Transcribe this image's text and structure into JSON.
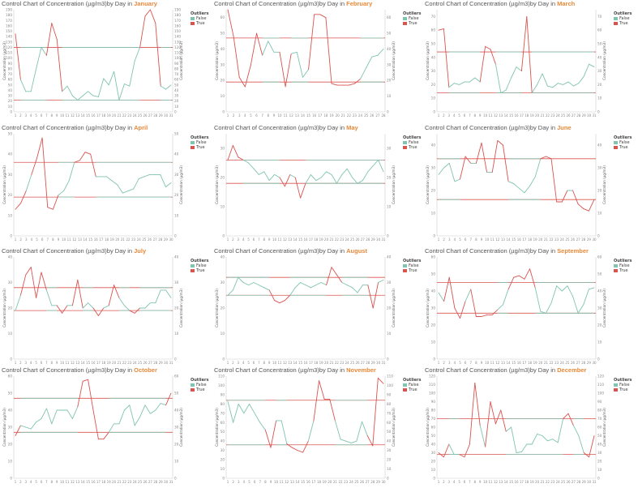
{
  "colors": {
    "normal": "#7fc4b0",
    "outlier": "#d9534f",
    "limit_normal": "#7fc4b0",
    "limit_outlier": "#d9534f",
    "month_text": "#e8893a"
  },
  "title_prefix": "Control Chart of Concentration (µg/m3)by Day in",
  "y_axis_label": "Concentration (µg/m3)",
  "legend": {
    "title": "Outliers",
    "items": [
      "False",
      "True"
    ]
  },
  "chart_data": [
    {
      "type": "line",
      "month": "January",
      "ylim": [
        0,
        190
      ],
      "yticks": [
        0,
        10,
        20,
        30,
        40,
        50,
        60,
        70,
        80,
        90,
        100,
        110,
        120,
        130,
        140,
        150,
        160,
        170,
        180,
        190
      ],
      "x": [
        1,
        2,
        3,
        4,
        5,
        6,
        7,
        8,
        9,
        10,
        11,
        12,
        13,
        14,
        15,
        16,
        17,
        18,
        19,
        20,
        21,
        22,
        23,
        24,
        25,
        26,
        27,
        28,
        29,
        30,
        31
      ],
      "values": [
        145,
        60,
        38,
        38,
        80,
        120,
        105,
        165,
        135,
        38,
        48,
        30,
        22,
        30,
        38,
        30,
        28,
        62,
        50,
        75,
        22,
        52,
        48,
        95,
        120,
        178,
        190,
        165,
        48,
        42,
        50
      ],
      "ucl": 120,
      "lcl": 22,
      "legend_position": "right"
    },
    {
      "type": "line",
      "month": "February",
      "ylim": [
        0,
        65
      ],
      "yticks": [
        0,
        10,
        20,
        30,
        40,
        50,
        60
      ],
      "x": [
        1,
        2,
        3,
        4,
        5,
        6,
        7,
        8,
        9,
        10,
        11,
        12,
        13,
        14,
        15,
        16,
        17,
        18,
        19,
        20,
        21,
        22,
        23,
        24,
        25,
        26,
        27,
        28
      ],
      "values": [
        65,
        48,
        22,
        16,
        30,
        50,
        36,
        45,
        38,
        38,
        16,
        37,
        38,
        22,
        27,
        62,
        62,
        60,
        18,
        17,
        17,
        17,
        18,
        21,
        28,
        35,
        36,
        40
      ],
      "ucl": 47,
      "lcl": 19,
      "legend_position": "right"
    },
    {
      "type": "line",
      "month": "March",
      "ylim": [
        0,
        75
      ],
      "yticks": [
        0,
        10,
        20,
        30,
        40,
        50,
        60,
        70
      ],
      "x": [
        1,
        2,
        3,
        4,
        5,
        6,
        7,
        8,
        9,
        10,
        11,
        12,
        13,
        14,
        15,
        16,
        17,
        18,
        19,
        20,
        21,
        22,
        23,
        24,
        25,
        26,
        27,
        28,
        29,
        30,
        31
      ],
      "values": [
        60,
        61,
        18,
        21,
        20,
        22,
        22,
        25,
        22,
        48,
        46,
        35,
        14,
        16,
        25,
        33,
        30,
        70,
        14,
        20,
        28,
        19,
        18,
        21,
        20,
        22,
        19,
        21,
        26,
        35,
        33
      ],
      "ucl": 44,
      "lcl": 14,
      "legend_position": "right"
    },
    {
      "type": "line",
      "month": "April",
      "ylim": [
        0,
        50
      ],
      "yticks": [
        0,
        10,
        20,
        30,
        40,
        50
      ],
      "x": [
        1,
        2,
        3,
        4,
        5,
        6,
        7,
        8,
        9,
        10,
        11,
        12,
        13,
        14,
        15,
        16,
        17,
        18,
        19,
        20,
        21,
        22,
        23,
        24,
        25,
        26,
        27,
        28,
        29,
        30
      ],
      "values": [
        13,
        16,
        22,
        30,
        38,
        48,
        14,
        13,
        20,
        22,
        27,
        36,
        37,
        41,
        40,
        29,
        29,
        29,
        27,
        25,
        21,
        22,
        23,
        28,
        29,
        30,
        30,
        30,
        24,
        26
      ],
      "ucl": 36,
      "lcl": 19,
      "legend_position": "right"
    },
    {
      "type": "line",
      "month": "May",
      "ylim": [
        0,
        35
      ],
      "yticks": [
        0,
        10,
        20,
        30
      ],
      "x": [
        1,
        2,
        3,
        4,
        5,
        6,
        7,
        8,
        9,
        10,
        11,
        12,
        13,
        14,
        15,
        16,
        17,
        18,
        19,
        20,
        21,
        22,
        23,
        24,
        25,
        26,
        27,
        28,
        29,
        30,
        31
      ],
      "values": [
        26,
        31,
        27,
        26,
        25,
        23,
        21,
        22,
        19,
        21,
        20,
        17,
        21,
        20,
        13,
        18,
        21,
        19,
        20,
        22,
        21,
        18,
        21,
        23,
        20,
        18,
        19,
        22,
        24,
        26,
        22
      ],
      "ucl": 26,
      "lcl": 18,
      "legend_position": "right"
    },
    {
      "type": "line",
      "month": "June",
      "ylim": [
        0,
        45
      ],
      "yticks": [
        0,
        10,
        20,
        30,
        40
      ],
      "x": [
        1,
        2,
        3,
        4,
        5,
        6,
        7,
        8,
        9,
        10,
        11,
        12,
        13,
        14,
        15,
        16,
        17,
        18,
        19,
        20,
        21,
        22,
        23,
        24,
        25,
        26,
        27,
        28,
        29,
        30
      ],
      "values": [
        27,
        30,
        32,
        24,
        25,
        35,
        32,
        32,
        41,
        28,
        28,
        42,
        40,
        24,
        23,
        21,
        19,
        22,
        26,
        34,
        35,
        34,
        15,
        15,
        20,
        20,
        14,
        12,
        11,
        16
      ],
      "ucl": 34,
      "lcl": 16,
      "legend_position": "right"
    },
    {
      "type": "line",
      "month": "July",
      "ylim": [
        0,
        40
      ],
      "yticks": [
        0,
        10,
        20,
        30,
        40
      ],
      "x": [
        1,
        2,
        3,
        4,
        5,
        6,
        7,
        8,
        9,
        10,
        11,
        12,
        13,
        14,
        15,
        16,
        17,
        18,
        19,
        20,
        21,
        22,
        23,
        24,
        25,
        26,
        27,
        28,
        29,
        30,
        31
      ],
      "values": [
        19,
        25,
        33,
        36,
        24,
        34,
        27,
        21,
        21,
        18,
        21,
        21,
        31,
        20,
        22,
        20,
        17,
        20,
        21,
        29,
        24,
        21,
        19,
        18,
        20,
        20,
        22,
        22,
        27,
        27,
        24
      ],
      "ucl": 28,
      "lcl": 19,
      "legend_position": "right"
    },
    {
      "type": "line",
      "month": "August",
      "ylim": [
        0,
        40
      ],
      "yticks": [
        0,
        10,
        20,
        30,
        40
      ],
      "x": [
        1,
        2,
        3,
        4,
        5,
        6,
        7,
        8,
        9,
        10,
        11,
        12,
        13,
        14,
        15,
        16,
        17,
        18,
        19,
        20,
        21,
        22,
        23,
        24,
        25,
        26,
        27,
        28,
        29,
        30,
        31
      ],
      "values": [
        25,
        27,
        32,
        30,
        29,
        30,
        29,
        28,
        27,
        23,
        22,
        23,
        25,
        28,
        30,
        29,
        28,
        29,
        30,
        29,
        36,
        33,
        30,
        29,
        28,
        26,
        29,
        29,
        20,
        30,
        31
      ],
      "ucl": 32,
      "lcl": 25,
      "legend_position": "right"
    },
    {
      "type": "line",
      "month": "September",
      "ylim": [
        0,
        60
      ],
      "yticks": [
        0,
        10,
        20,
        30,
        40,
        50,
        60
      ],
      "x": [
        1,
        2,
        3,
        4,
        5,
        6,
        7,
        8,
        9,
        10,
        11,
        12,
        13,
        14,
        15,
        16,
        17,
        18,
        19,
        20,
        21,
        22,
        23,
        24,
        25,
        26,
        27,
        28,
        29,
        30
      ],
      "values": [
        39,
        34,
        48,
        30,
        24,
        34,
        41,
        25,
        25,
        26,
        26,
        29,
        32,
        41,
        48,
        49,
        47,
        53,
        42,
        28,
        27,
        33,
        43,
        40,
        43,
        37,
        27,
        32,
        41,
        42
      ],
      "ucl": 45,
      "lcl": 27,
      "legend_position": "right"
    },
    {
      "type": "line",
      "month": "October",
      "ylim": [
        0,
        60
      ],
      "yticks": [
        0,
        10,
        20,
        30,
        40,
        50,
        60
      ],
      "x": [
        1,
        2,
        3,
        4,
        5,
        6,
        7,
        8,
        9,
        10,
        11,
        12,
        13,
        14,
        15,
        16,
        17,
        18,
        19,
        20,
        21,
        22,
        23,
        24,
        25,
        26,
        27,
        28,
        29,
        30,
        31
      ],
      "values": [
        25,
        31,
        30,
        29,
        33,
        35,
        41,
        32,
        40,
        40,
        40,
        35,
        42,
        57,
        58,
        40,
        23,
        23,
        27,
        32,
        32,
        40,
        43,
        31,
        36,
        43,
        38,
        40,
        44,
        43,
        50
      ],
      "ucl": 47,
      "lcl": 27,
      "legend_position": "right"
    },
    {
      "type": "line",
      "month": "November",
      "ylim": [
        0,
        110
      ],
      "yticks": [
        0,
        10,
        20,
        30,
        40,
        50,
        60,
        70,
        80,
        90,
        100,
        110
      ],
      "x": [
        1,
        2,
        3,
        4,
        5,
        6,
        7,
        8,
        9,
        10,
        11,
        12,
        13,
        14,
        15,
        16,
        17,
        18,
        19,
        20,
        21,
        22,
        23,
        24,
        25,
        26,
        27,
        28,
        29,
        30
      ],
      "values": [
        83,
        60,
        80,
        70,
        80,
        70,
        60,
        52,
        33,
        62,
        62,
        37,
        33,
        30,
        28,
        40,
        62,
        105,
        85,
        85,
        62,
        42,
        40,
        38,
        40,
        61,
        46,
        35,
        108,
        102
      ],
      "ucl": 84,
      "lcl": 36,
      "legend_position": "right"
    },
    {
      "type": "line",
      "month": "December",
      "ylim": [
        0,
        120
      ],
      "yticks": [
        0,
        10,
        20,
        30,
        40,
        50,
        60,
        70,
        80,
        90,
        100,
        110,
        120
      ],
      "x": [
        1,
        2,
        3,
        4,
        5,
        6,
        7,
        8,
        9,
        10,
        11,
        12,
        13,
        14,
        15,
        16,
        17,
        18,
        19,
        20,
        21,
        22,
        23,
        24,
        25,
        26,
        27,
        28,
        29,
        30,
        31
      ],
      "values": [
        30,
        25,
        40,
        28,
        28,
        25,
        40,
        112,
        62,
        37,
        90,
        64,
        80,
        55,
        60,
        30,
        31,
        40,
        40,
        52,
        50,
        44,
        46,
        42,
        70,
        76,
        62,
        50,
        30,
        25,
        50
      ],
      "ucl": 70,
      "lcl": 28,
      "legend_position": "right"
    }
  ]
}
